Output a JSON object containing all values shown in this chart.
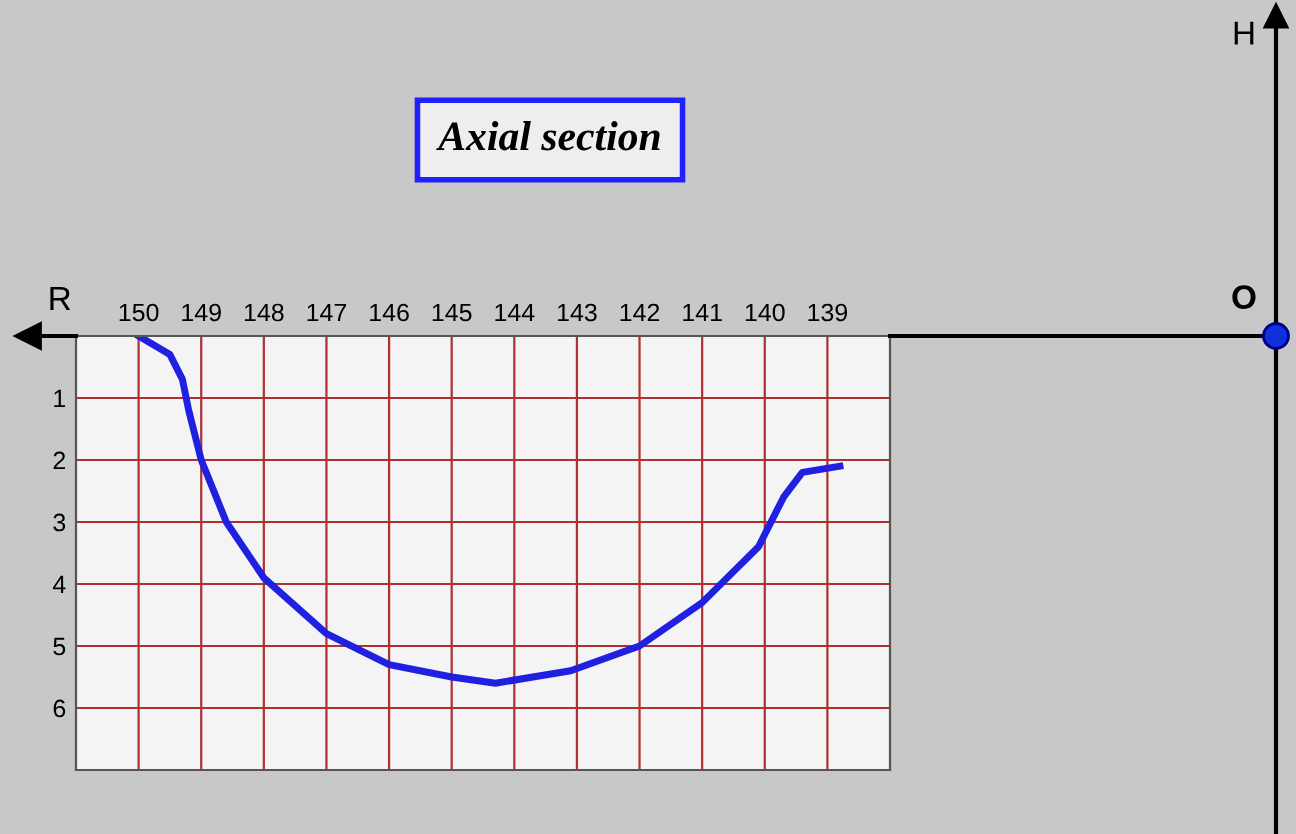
{
  "chart_data": {
    "type": "line",
    "title": "Axial section",
    "xlabel": "R",
    "annotations": [
      "H",
      "O"
    ],
    "x": [
      150,
      149.5,
      149.3,
      149.2,
      149.0,
      148.6,
      148.0,
      147.0,
      146.0,
      145.0,
      144.3,
      143.1,
      142.0,
      141.0,
      140.1,
      139.7,
      139.4,
      138.8
    ],
    "series": [
      {
        "color": "#2020e0",
        "values": [
          0.0,
          0.3,
          0.7,
          1.2,
          2.0,
          3.0,
          3.9,
          4.8,
          5.3,
          5.5,
          5.6,
          5.4,
          5.0,
          4.3,
          3.4,
          2.6,
          2.2,
          2.1
        ]
      }
    ],
    "xlim": [
      151,
      138
    ],
    "ylim": [
      7,
      0
    ],
    "xticks": [
      150,
      149,
      148,
      147,
      146,
      145,
      144,
      143,
      142,
      141,
      140,
      139
    ],
    "yticks": [
      1,
      2,
      3,
      4,
      5,
      6
    ],
    "grid": true,
    "marker": "none",
    "line_style": "solid"
  }
}
